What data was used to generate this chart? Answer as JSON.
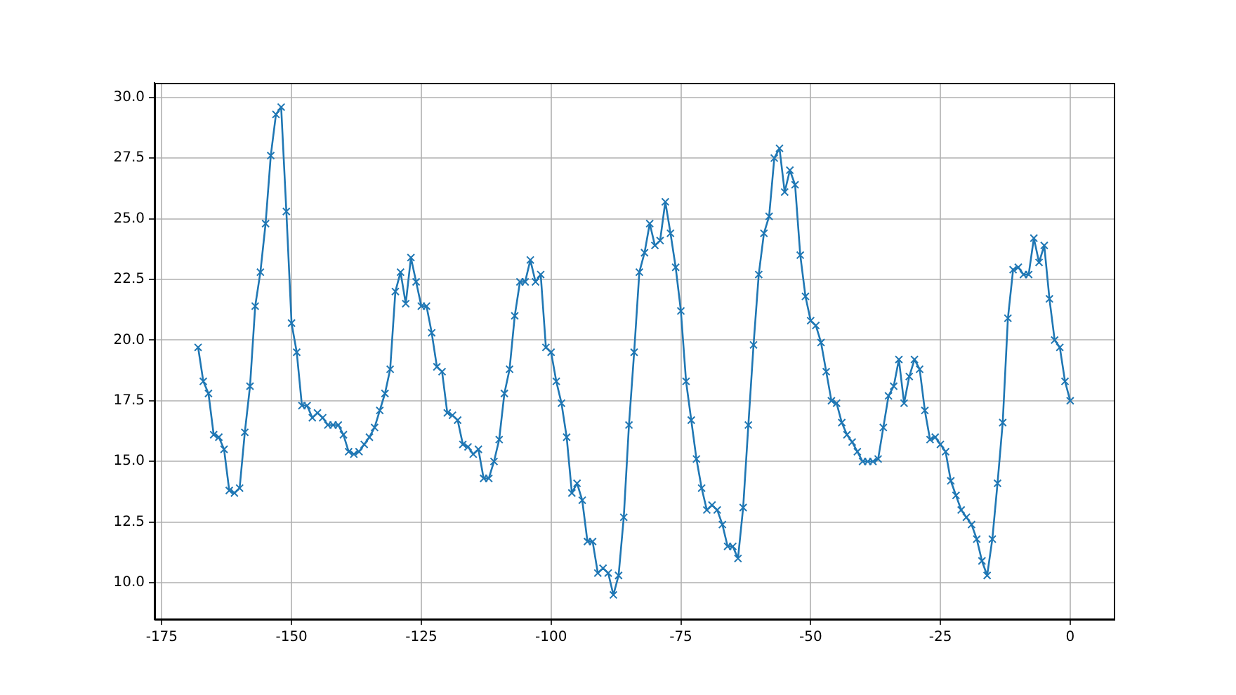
{
  "chart_data": {
    "type": "line",
    "x": [
      -168,
      -167,
      -166,
      -165,
      -164,
      -163,
      -162,
      -161,
      -160,
      -159,
      -158,
      -157,
      -156,
      -155,
      -154,
      -153,
      -152,
      -151,
      -150,
      -149,
      -148,
      -147,
      -146,
      -145,
      -144,
      -143,
      -142,
      -141,
      -140,
      -139,
      -138,
      -137,
      -136,
      -135,
      -134,
      -133,
      -132,
      -131,
      -130,
      -129,
      -128,
      -127,
      -126,
      -125,
      -124,
      -123,
      -122,
      -121,
      -120,
      -119,
      -118,
      -117,
      -116,
      -115,
      -114,
      -113,
      -112,
      -111,
      -110,
      -109,
      -108,
      -107,
      -106,
      -105,
      -104,
      -103,
      -102,
      -101,
      -100,
      -99,
      -98,
      -97,
      -96,
      -95,
      -94,
      -93,
      -92,
      -91,
      -90,
      -89,
      -88,
      -87,
      -86,
      -85,
      -84,
      -83,
      -82,
      -81,
      -80,
      -79,
      -78,
      -77,
      -76,
      -75,
      -74,
      -73,
      -72,
      -71,
      -70,
      -69,
      -68,
      -67,
      -66,
      -65,
      -64,
      -63,
      -62,
      -61,
      -60,
      -59,
      -58,
      -57,
      -56,
      -55,
      -54,
      -53,
      -52,
      -51,
      -50,
      -49,
      -48,
      -47,
      -46,
      -45,
      -44,
      -43,
      -42,
      -41,
      -40,
      -39,
      -38,
      -37,
      -36,
      -35,
      -34,
      -33,
      -32,
      -31,
      -30,
      -29,
      -28,
      -27,
      -26,
      -25,
      -24,
      -23,
      -22,
      -21,
      -20,
      -19,
      -18,
      -17,
      -16,
      -15,
      -14,
      -13,
      -12,
      -11,
      -10,
      -9,
      -8,
      -7,
      -6,
      -5,
      -4,
      -3,
      -2,
      -1,
      0
    ],
    "series": [
      {
        "color": "#1f77b4",
        "values": [
          19.7,
          18.3,
          17.8,
          16.1,
          16.0,
          15.5,
          13.8,
          13.7,
          13.9,
          16.2,
          18.1,
          21.4,
          22.8,
          24.8,
          27.6,
          29.3,
          29.6,
          25.3,
          20.7,
          19.5,
          17.3,
          17.3,
          16.8,
          17.0,
          16.8,
          16.5,
          16.5,
          16.5,
          16.1,
          15.4,
          15.3,
          15.4,
          15.7,
          16.0,
          16.4,
          17.1,
          17.8,
          18.8,
          22.0,
          22.8,
          21.5,
          23.4,
          22.4,
          21.4,
          21.4,
          20.3,
          18.9,
          18.7,
          17.0,
          16.9,
          16.7,
          15.7,
          15.6,
          15.3,
          15.5,
          14.3,
          14.3,
          15.0,
          15.9,
          17.8,
          18.8,
          21.0,
          22.4,
          22.4,
          23.3,
          22.4,
          22.7,
          19.7,
          19.5,
          18.3,
          17.4,
          16.0,
          13.7,
          14.1,
          13.4,
          11.7,
          11.7,
          10.4,
          10.6,
          10.4,
          9.5,
          10.3,
          12.7,
          16.5,
          19.5,
          22.8,
          23.6,
          24.8,
          23.9,
          24.1,
          25.7,
          24.4,
          23.0,
          21.2,
          18.3,
          16.7,
          15.1,
          13.9,
          13.0,
          13.2,
          13.0,
          12.4,
          11.5,
          11.5,
          11.0,
          13.1,
          16.5,
          19.8,
          22.7,
          24.4,
          25.1,
          27.5,
          27.9,
          26.1,
          27.0,
          26.4,
          23.5,
          21.8,
          20.8,
          20.6,
          19.9,
          18.7,
          17.5,
          17.4,
          16.6,
          16.1,
          15.8,
          15.4,
          15.0,
          15.0,
          15.0,
          15.1,
          16.4,
          17.7,
          18.1,
          19.2,
          17.4,
          18.5,
          19.2,
          18.8,
          17.1,
          15.9,
          16.0,
          15.7,
          15.4,
          14.2,
          13.6,
          13.0,
          12.7,
          12.4,
          11.8,
          10.9,
          10.3,
          11.8,
          14.1,
          16.6,
          20.9,
          22.9,
          23.0,
          22.7,
          22.7,
          24.2,
          23.2,
          23.9,
          21.7,
          20.0,
          19.7,
          18.3,
          17.5
        ]
      }
    ],
    "xlim": [
      -176.4,
      8.4
    ],
    "xticks": [
      -175,
      -150,
      -125,
      -100,
      -75,
      -50,
      -25,
      0
    ],
    "ylim": [
      8.5,
      30.6
    ],
    "yticks": [
      {
        "value": 10,
        "label": "10.0"
      },
      {
        "value": 12.5,
        "label": "12.5"
      },
      {
        "value": 15,
        "label": "15.0"
      },
      {
        "value": 17.5,
        "label": "17.5"
      },
      {
        "value": 20,
        "label": "20.0"
      },
      {
        "value": 22.5,
        "label": "22.5"
      },
      {
        "value": 25,
        "label": "25.0"
      },
      {
        "value": 27.5,
        "label": "27.5"
      },
      {
        "value": 30,
        "label": "30.0"
      }
    ],
    "grid": true,
    "marker": "cross",
    "line_style": "solid"
  }
}
